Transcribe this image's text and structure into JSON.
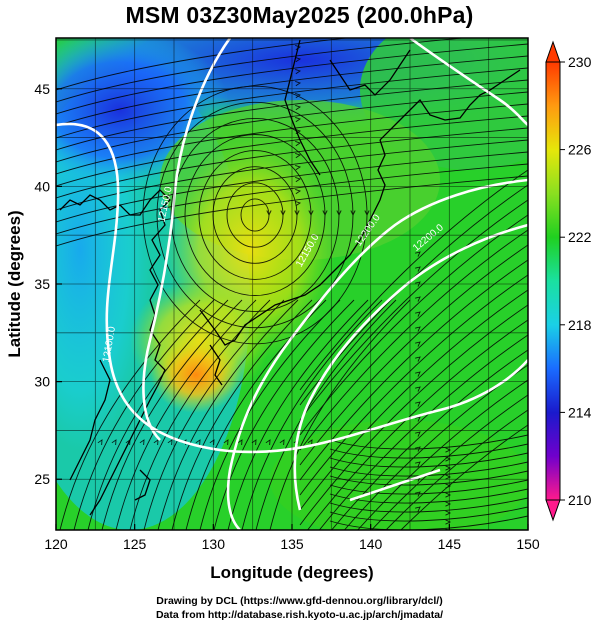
{
  "title": "MSM 03Z30May2025 (200.0hPa)",
  "axes": {
    "xlabel": "Longitude (degrees)",
    "ylabel": "Latitude  (degrees)",
    "xticks": [
      "120",
      "125",
      "130",
      "135",
      "140",
      "145",
      "150"
    ],
    "yticks": [
      "25",
      "30",
      "35",
      "40",
      "45"
    ],
    "xlim": [
      120,
      150
    ],
    "ylim": [
      22.4,
      47.6
    ]
  },
  "colorbar": {
    "labels": [
      "230",
      "226",
      "222",
      "218",
      "214",
      "210"
    ],
    "range": [
      210,
      230
    ],
    "colors": [
      "#ff1a8c",
      "#7000cc",
      "#1a1acc",
      "#1a6cff",
      "#1ad0e6",
      "#1ae0a0",
      "#20d020",
      "#8ae020",
      "#e6e60a",
      "#ff9a10",
      "#ff3a00"
    ]
  },
  "contour_labels": [
    "12150.0",
    "12200.0",
    "12100.0",
    "12150.0",
    "12200.0"
  ],
  "credits": {
    "line1": "Drawing by DCL (https://www.gfd-dennou.org/library/dcl/)",
    "line2": "Data from http://database.rish.kyoto-u.ac.jp/arch/jmadata/"
  }
}
